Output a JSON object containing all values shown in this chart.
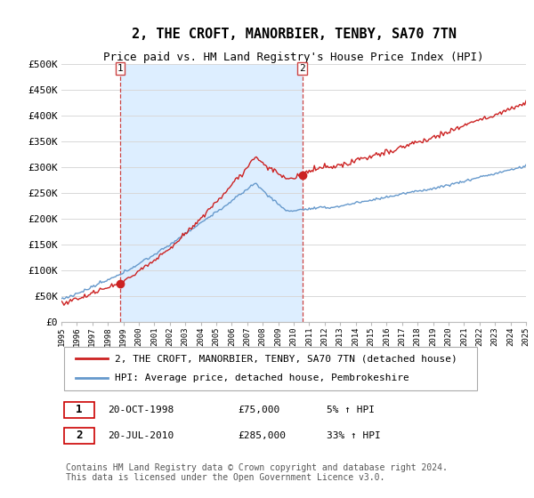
{
  "title": "2, THE CROFT, MANORBIER, TENBY, SA70 7TN",
  "subtitle": "Price paid vs. HM Land Registry's House Price Index (HPI)",
  "ylim": [
    0,
    500000
  ],
  "yticks": [
    0,
    50000,
    100000,
    150000,
    200000,
    250000,
    300000,
    350000,
    400000,
    450000,
    500000
  ],
  "ytick_labels": [
    "£0",
    "£50K",
    "£100K",
    "£150K",
    "£200K",
    "£250K",
    "£300K",
    "£350K",
    "£400K",
    "£450K",
    "£500K"
  ],
  "xlim_start": 1995,
  "xlim_end": 2025,
  "bg_color": "#ffffff",
  "plot_bg_color": "#ffffff",
  "shade_color": "#ddeeff",
  "grid_color": "#d8d8d8",
  "line1_color": "#cc2222",
  "line2_color": "#6699cc",
  "sale1_year": 1998.8,
  "sale1_price": 75000,
  "sale2_year": 2010.55,
  "sale2_price": 285000,
  "sale_marker_color": "#cc2222",
  "vline_color": "#cc4444",
  "legend_label1": "2, THE CROFT, MANORBIER, TENBY, SA70 7TN (detached house)",
  "legend_label2": "HPI: Average price, detached house, Pembrokeshire",
  "annotation1_num": "1",
  "annotation1_date": "20-OCT-1998",
  "annotation1_price": "£75,000",
  "annotation1_hpi": "5% ↑ HPI",
  "annotation2_num": "2",
  "annotation2_date": "20-JUL-2010",
  "annotation2_price": "£285,000",
  "annotation2_hpi": "33% ↑ HPI",
  "footer": "Contains HM Land Registry data © Crown copyright and database right 2024.\nThis data is licensed under the Open Government Licence v3.0.",
  "title_fontsize": 11,
  "subtitle_fontsize": 9,
  "tick_fontsize": 8,
  "legend_fontsize": 8,
  "annotation_fontsize": 8,
  "footer_fontsize": 7
}
